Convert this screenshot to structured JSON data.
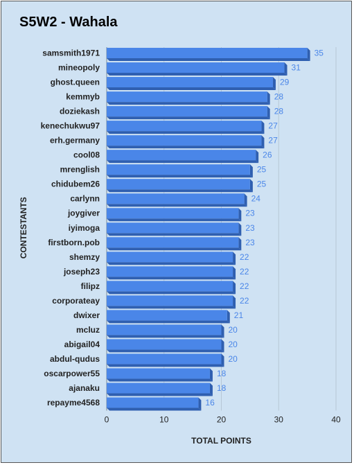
{
  "chart_data": {
    "type": "bar",
    "orientation": "horizontal",
    "title": "S5W2 - Wahala",
    "xlabel": "TOTAL POINTS",
    "ylabel": "CONTESTANTS",
    "categories": [
      "samsmith1971",
      "mineopoly",
      "ghost.queen",
      "kemmyb",
      "doziekash",
      "kenechukwu97",
      "erh.germany",
      "cool08",
      "mrenglish",
      "chidubem26",
      "carlynn",
      "joygiver",
      "iyimoga",
      "firstborn.pob",
      "shemzy",
      "joseph23",
      "filipz",
      "corporateay",
      "dwixer",
      "mcluz",
      "abigail04",
      "abdul-qudus",
      "oscarpower55",
      "ajanaku",
      "repayme4568"
    ],
    "values": [
      35,
      31,
      29,
      28,
      28,
      27,
      27,
      26,
      25,
      25,
      24,
      23,
      23,
      23,
      22,
      22,
      22,
      22,
      21,
      20,
      20,
      20,
      18,
      18,
      16
    ],
    "xlim": [
      0,
      40
    ],
    "xticks": [
      0,
      10,
      20,
      30,
      40
    ],
    "grid": true,
    "data_labels": true,
    "colors": {
      "bar": "#4a86e8",
      "bar_shade": "#2f5fb0",
      "label": "#4a86e8",
      "background": "#cfe2f3",
      "grid": "#b7c7d6"
    }
  }
}
